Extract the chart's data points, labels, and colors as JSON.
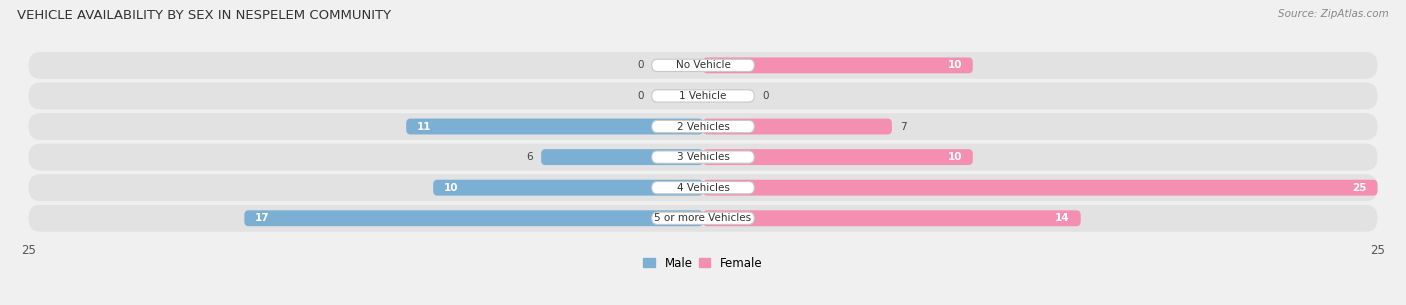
{
  "title": "VEHICLE AVAILABILITY BY SEX IN NESPELEM COMMUNITY",
  "source": "Source: ZipAtlas.com",
  "categories": [
    "No Vehicle",
    "1 Vehicle",
    "2 Vehicles",
    "3 Vehicles",
    "4 Vehicles",
    "5 or more Vehicles"
  ],
  "male_values": [
    0,
    0,
    11,
    6,
    10,
    17
  ],
  "female_values": [
    10,
    0,
    7,
    10,
    25,
    14
  ],
  "male_color": "#7bafd4",
  "female_color": "#f48fb1",
  "max_val": 25,
  "title_fontsize": 9.5,
  "label_fontsize": 7.5,
  "axis_fontsize": 8.5,
  "background_color": "#f0f0f0",
  "row_bg_color": "#e2e2e2",
  "value_outside_color": "#444444",
  "value_inside_color": "#ffffff"
}
